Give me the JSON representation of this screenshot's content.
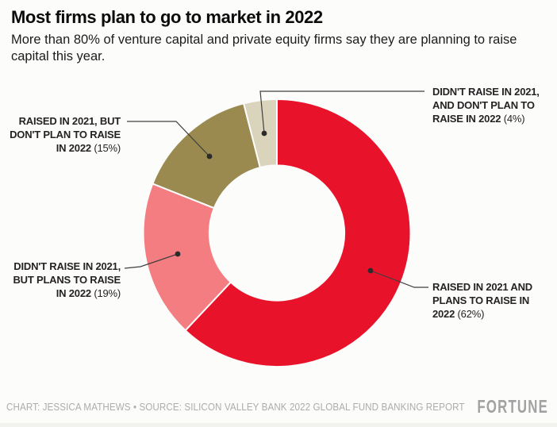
{
  "header": {
    "title": "Most firms plan to go to market in 2022",
    "subtitle": "More than 80% of venture capital and private equity firms say they are planning to raise capital this year."
  },
  "chart_data": {
    "type": "pie",
    "subtype": "donut",
    "title": "Most firms plan to go to market in 2022",
    "start_angle_deg": 0,
    "direction": "clockwise",
    "inner_radius_ratio": 0.505,
    "slices": [
      {
        "label": "RAISED IN 2021 AND PLANS TO RAISE IN 2022",
        "value": 62,
        "color": "#e8132b"
      },
      {
        "label": "DIDN'T RAISE IN 2021, BUT PLANS TO RAISE IN 2022",
        "value": 19,
        "color": "#f47d82"
      },
      {
        "label": "RAISED IN 2021, BUT DON'T PLAN TO RAISE IN 2022",
        "value": 15,
        "color": "#9b8a50"
      },
      {
        "label": "DIDN'T RAISE IN 2021, AND DON'T PLAN TO RAISE IN 2022",
        "value": 4,
        "color": "#dbd4bc"
      }
    ]
  },
  "callouts": [
    {
      "line1": "DIDN'T RAISE IN 2021,",
      "line2": "AND DON'T PLAN TO",
      "line3_bold": "RAISE IN 2022",
      "line3_pct": " (4%)"
    },
    {
      "line1": "RAISED IN 2021, BUT",
      "line2": "DON'T PLAN TO RAISE",
      "line3_bold": "IN 2022",
      "line3_pct": " (15%)"
    },
    {
      "line1": "DIDN'T RAISE IN 2021,",
      "line2": "BUT PLANS TO RAISE",
      "line3_bold": "IN 2022",
      "line3_pct": " (19%)"
    },
    {
      "line1": "RAISED IN 2021 AND",
      "line2": "PLANS TO RAISE IN",
      "line3_bold": "2022",
      "line3_pct": " (62%)"
    }
  ],
  "colors": {
    "leader_line": "#3f3f3f",
    "leader_dot": "#2b2b2b",
    "background": "#fcfcfb"
  },
  "footer": {
    "credit": "CHART: JESSICA MATHEWS • SOURCE: SILICON VALLEY BANK 2022 GLOBAL FUND BANKING REPORT",
    "logo": "FORTUNE"
  }
}
